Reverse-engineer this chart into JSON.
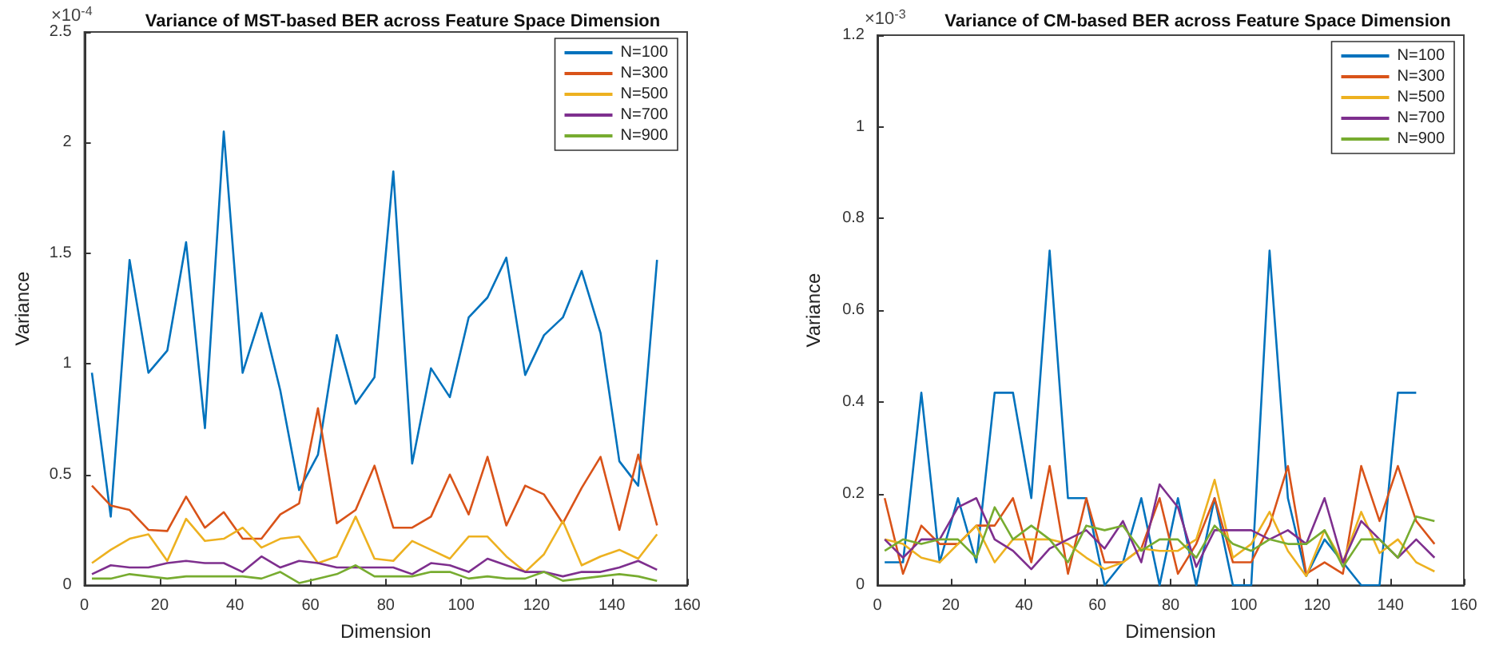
{
  "chart_data": [
    {
      "type": "line",
      "title": "Variance of MST-based BER across Feature Space Dimension",
      "xlabel": "Dimension",
      "ylabel": "Variance",
      "annotations": [
        "×10$^{-4}$"
      ],
      "x": [
        2,
        7,
        12,
        17,
        22,
        27,
        32,
        37,
        42,
        47,
        52,
        57,
        62,
        67,
        72,
        77,
        82,
        87,
        92,
        97,
        102,
        107,
        112,
        117,
        122,
        127,
        132,
        137,
        142,
        147,
        152
      ],
      "series": [
        {
          "name": "N=100",
          "color": "#0072bd",
          "values": [
            0.96,
            0.31,
            1.47,
            0.96,
            1.06,
            1.55,
            0.71,
            2.05,
            0.96,
            1.23,
            0.88,
            0.43,
            0.59,
            1.13,
            0.82,
            0.94,
            1.87,
            0.55,
            0.98,
            0.85,
            1.21,
            1.3,
            1.48,
            0.95,
            1.13,
            1.21,
            1.42,
            1.14,
            0.56,
            0.45,
            1.47
          ]
        },
        {
          "name": "N=300",
          "color": "#d95319",
          "values": [
            0.45,
            0.36,
            0.34,
            0.25,
            0.245,
            0.4,
            0.26,
            0.33,
            0.21,
            0.21,
            0.32,
            0.37,
            0.8,
            0.28,
            0.34,
            0.54,
            0.26,
            0.26,
            0.31,
            0.5,
            0.32,
            0.58,
            0.27,
            0.45,
            0.41,
            0.28,
            0.44,
            0.58,
            0.25,
            0.59,
            0.27
          ]
        },
        {
          "name": "N=500",
          "color": "#edb120",
          "values": [
            0.1,
            0.16,
            0.21,
            0.23,
            0.11,
            0.3,
            0.2,
            0.21,
            0.26,
            0.17,
            0.21,
            0.22,
            0.1,
            0.13,
            0.31,
            0.12,
            0.11,
            0.2,
            0.16,
            0.12,
            0.22,
            0.22,
            0.13,
            0.06,
            0.14,
            0.29,
            0.09,
            0.13,
            0.16,
            0.12,
            0.23
          ]
        },
        {
          "name": "N=700",
          "color": "#7e2f8e",
          "values": [
            0.05,
            0.09,
            0.08,
            0.08,
            0.1,
            0.11,
            0.1,
            0.1,
            0.06,
            0.13,
            0.08,
            0.11,
            0.1,
            0.08,
            0.08,
            0.08,
            0.08,
            0.05,
            0.1,
            0.09,
            0.06,
            0.12,
            0.09,
            0.06,
            0.06,
            0.04,
            0.06,
            0.06,
            0.08,
            0.11,
            0.07
          ]
        },
        {
          "name": "N=900",
          "color": "#77ac30",
          "values": [
            0.03,
            0.03,
            0.05,
            0.04,
            0.03,
            0.04,
            0.04,
            0.04,
            0.04,
            0.03,
            0.06,
            0.01,
            0.03,
            0.05,
            0.09,
            0.04,
            0.04,
            0.04,
            0.06,
            0.06,
            0.03,
            0.04,
            0.03,
            0.03,
            0.06,
            0.02,
            0.03,
            0.04,
            0.05,
            0.04,
            0.02
          ]
        }
      ],
      "xlim": [
        0,
        160
      ],
      "xticks": [
        0,
        20,
        40,
        60,
        80,
        100,
        120,
        140,
        160
      ],
      "ylim": [
        0,
        2.5
      ],
      "yticks": [
        0,
        0.5,
        1,
        1.5,
        2,
        2.5
      ],
      "grid": false,
      "legend": "top right"
    },
    {
      "type": "line",
      "title": "Variance of CM-based BER across Feature Space Dimension",
      "xlabel": "Dimension",
      "ylabel": "Variance",
      "annotations": [
        "×10$^{-3}$"
      ],
      "x": [
        2,
        7,
        12,
        17,
        22,
        27,
        32,
        37,
        42,
        47,
        52,
        57,
        62,
        67,
        72,
        77,
        82,
        87,
        92,
        97,
        102,
        107,
        112,
        117,
        122,
        127,
        132,
        137,
        142,
        147,
        152
      ],
      "series": [
        {
          "name": "N=100",
          "color": "#0072bd",
          "values": [
            0.05,
            0.05,
            0.42,
            0.05,
            0.19,
            0.05,
            0.42,
            0.42,
            0.19,
            0.73,
            0.19,
            0.19,
            0,
            0.05,
            0.19,
            0,
            0.19,
            0,
            0.19,
            0,
            0,
            0.73,
            0.19,
            0.02,
            0.1,
            0.05,
            0,
            0,
            0.42,
            0.42,
            null
          ]
        },
        {
          "name": "N=300",
          "color": "#d95319",
          "values": [
            0.19,
            0.025,
            0.13,
            0.09,
            0.09,
            0.13,
            0.13,
            0.19,
            0.05,
            0.26,
            0.025,
            0.19,
            0.05,
            0.05,
            0.08,
            0.19,
            0.025,
            0.09,
            0.19,
            0.05,
            0.05,
            0.13,
            0.26,
            0.025,
            0.05,
            0.025,
            0.26,
            0.14,
            0.26,
            0.14,
            0.09
          ]
        },
        {
          "name": "N=500",
          "color": "#edb120",
          "values": [
            0.1,
            0.09,
            0.06,
            0.05,
            0.09,
            0.13,
            0.05,
            0.1,
            0.1,
            0.1,
            0.09,
            0.06,
            0.035,
            0.05,
            0.08,
            0.075,
            0.075,
            0.1,
            0.23,
            0.06,
            0.09,
            0.16,
            0.075,
            0.02,
            0.12,
            0.05,
            0.16,
            0.07,
            0.1,
            0.05,
            0.03
          ]
        },
        {
          "name": "N=700",
          "color": "#7e2f8e",
          "values": [
            0.1,
            0.06,
            0.1,
            0.1,
            0.17,
            0.19,
            0.1,
            0.075,
            0.035,
            0.08,
            0.1,
            0.12,
            0.08,
            0.14,
            0.05,
            0.22,
            0.17,
            0.04,
            0.12,
            0.12,
            0.12,
            0.1,
            0.12,
            0.09,
            0.19,
            0.05,
            0.14,
            0.1,
            0.06,
            0.1,
            0.06
          ]
        },
        {
          "name": "N=900",
          "color": "#77ac30",
          "values": [
            0.075,
            0.1,
            0.09,
            0.1,
            0.1,
            0.06,
            0.17,
            0.1,
            0.13,
            0.1,
            0.05,
            0.13,
            0.12,
            0.13,
            0.075,
            0.1,
            0.1,
            0.06,
            0.13,
            0.09,
            0.075,
            0.1,
            0.09,
            0.09,
            0.12,
            0.04,
            0.1,
            0.1,
            0.06,
            0.15,
            0.14
          ]
        }
      ],
      "xlim": [
        0,
        160
      ],
      "xticks": [
        0,
        20,
        40,
        60,
        80,
        100,
        120,
        140,
        160
      ],
      "ylim": [
        0,
        1.2
      ],
      "yticks": [
        0,
        0.2,
        0.4,
        0.6,
        0.8,
        1,
        1.2
      ],
      "grid": false,
      "legend": "top right"
    }
  ]
}
